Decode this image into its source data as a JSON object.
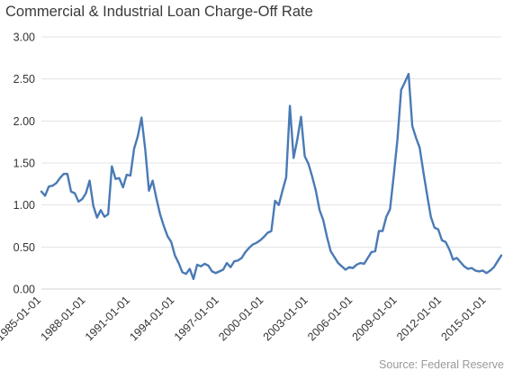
{
  "chart_data": {
    "type": "line",
    "title": "Commercial & Industrial Loan Charge-Off Rate",
    "source": "Source: Federal Reserve",
    "xlabel": "",
    "ylabel": "",
    "ylim": [
      0,
      3
    ],
    "yticks": [
      "0.00",
      "0.50",
      "1.00",
      "1.50",
      "2.00",
      "2.50",
      "3.00"
    ],
    "xticks": [
      "1985-01-01",
      "1988-01-01",
      "1991-01-01",
      "1994-01-01",
      "1997-01-01",
      "2000-01-01",
      "2003-01-01",
      "2006-01-01",
      "2009-01-01",
      "2012-01-01",
      "2015-01-01"
    ],
    "grid": "horizontal",
    "line_color": "#4a7ab5",
    "series": [
      {
        "values": [
          1.16,
          1.11,
          1.22,
          1.23,
          1.26,
          1.32,
          1.37,
          1.37,
          1.16,
          1.14,
          1.04,
          1.07,
          1.14,
          1.29,
          0.99,
          0.85,
          0.94,
          0.86,
          0.89,
          1.46,
          1.31,
          1.32,
          1.21,
          1.36,
          1.35,
          1.67,
          1.82,
          2.04,
          1.66,
          1.17,
          1.29,
          1.08,
          0.89,
          0.75,
          0.63,
          0.56,
          0.4,
          0.31,
          0.2,
          0.18,
          0.24,
          0.12,
          0.29,
          0.27,
          0.3,
          0.28,
          0.21,
          0.19,
          0.21,
          0.23,
          0.31,
          0.26,
          0.33,
          0.34,
          0.37,
          0.44,
          0.49,
          0.53,
          0.55,
          0.58,
          0.62,
          0.67,
          0.69,
          1.05,
          1.0,
          1.17,
          1.33,
          2.18,
          1.56,
          1.78,
          2.05,
          1.58,
          1.49,
          1.34,
          1.17,
          0.94,
          0.82,
          0.62,
          0.45,
          0.38,
          0.31,
          0.27,
          0.23,
          0.26,
          0.25,
          0.29,
          0.31,
          0.3,
          0.37,
          0.44,
          0.45,
          0.69,
          0.69,
          0.86,
          0.95,
          1.35,
          1.78,
          2.37,
          2.46,
          2.56,
          1.94,
          1.8,
          1.68,
          1.39,
          1.12,
          0.86,
          0.73,
          0.71,
          0.58,
          0.56,
          0.47,
          0.35,
          0.37,
          0.32,
          0.27,
          0.24,
          0.25,
          0.22,
          0.21,
          0.22,
          0.19,
          0.22,
          0.26,
          0.33,
          0.4
        ]
      }
    ]
  }
}
